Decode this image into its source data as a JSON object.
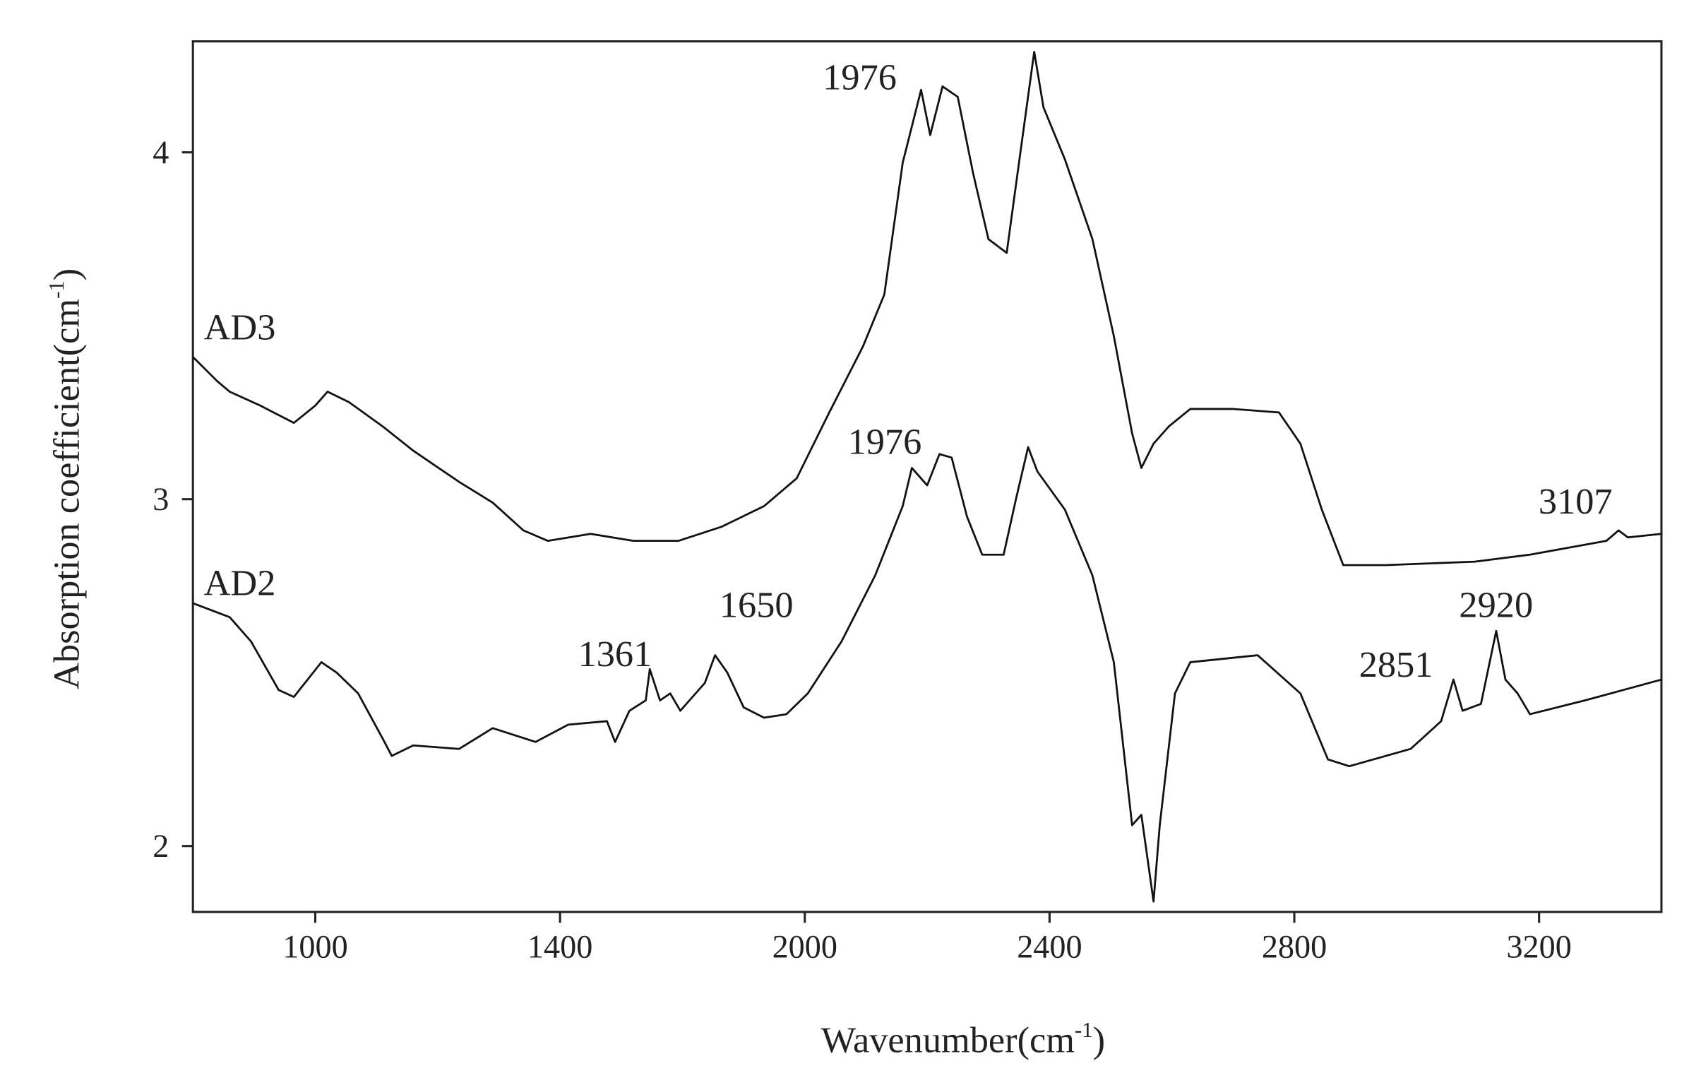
{
  "chart_data": {
    "type": "line",
    "xlabel": "Wavenumber(cm",
    "xlabel_sup": "-1",
    "xlabel_end": ")",
    "ylabel": "Absorption coefficient(cm",
    "ylabel_sup": "-1",
    "ylabel_end": ")",
    "xlim": [
      800,
      3400
    ],
    "xticks": [
      1000,
      1400,
      2000,
      2400,
      2800,
      3200
    ],
    "ylim": [
      1.81,
      4.32
    ],
    "yticks": [
      2,
      3,
      4
    ],
    "annotations": [
      "1976",
      "1976",
      "1361",
      "1650",
      "2851",
      "2920",
      "3107"
    ],
    "series": [
      {
        "name": "AD3",
        "color": "#111111",
        "x": [
          800,
          840,
          860,
          910,
          965,
          1000,
          1020,
          1055,
          1110,
          1160,
          1235,
          1290,
          1340,
          1380,
          1475,
          1580,
          1690,
          1795,
          1900,
          1980,
          2040,
          2095,
          2130,
          2160,
          2190,
          2205,
          2225,
          2250,
          2275,
          2300,
          2330,
          2350,
          2375,
          2390,
          2425,
          2470,
          2505,
          2535,
          2550,
          2570,
          2595,
          2630,
          2700,
          2775,
          2810,
          2845,
          2880,
          2950,
          3095,
          3185,
          3310,
          3330,
          3345,
          3400
        ],
        "values": [
          3.41,
          3.34,
          3.31,
          3.27,
          3.22,
          3.27,
          3.31,
          3.28,
          3.21,
          3.14,
          3.05,
          2.99,
          2.91,
          2.88,
          2.9,
          2.88,
          2.88,
          2.92,
          2.98,
          3.06,
          3.25,
          3.44,
          3.59,
          3.97,
          4.18,
          4.05,
          4.19,
          4.16,
          3.94,
          3.75,
          3.71,
          3.97,
          4.29,
          4.13,
          3.98,
          3.75,
          3.47,
          3.19,
          3.09,
          3.16,
          3.21,
          3.26,
          3.26,
          3.25,
          3.16,
          2.97,
          2.81,
          2.81,
          2.82,
          2.84,
          2.88,
          2.91,
          2.89,
          2.9
        ]
      },
      {
        "name": "AD2",
        "color": "#111111",
        "x": [
          800,
          860,
          895,
          940,
          965,
          1010,
          1035,
          1070,
          1110,
          1125,
          1160,
          1235,
          1290,
          1360,
          1420,
          1515,
          1535,
          1570,
          1610,
          1620,
          1645,
          1670,
          1695,
          1755,
          1780,
          1810,
          1850,
          1900,
          1955,
          2005,
          2060,
          2115,
          2160,
          2175,
          2200,
          2220,
          2240,
          2265,
          2290,
          2325,
          2345,
          2365,
          2380,
          2425,
          2470,
          2505,
          2535,
          2550,
          2570,
          2580,
          2605,
          2630,
          2740,
          2810,
          2855,
          2890,
          2990,
          3040,
          3060,
          3075,
          3105,
          3130,
          3145,
          3165,
          3185,
          3275,
          3400
        ],
        "values": [
          2.7,
          2.66,
          2.59,
          2.45,
          2.43,
          2.53,
          2.5,
          2.44,
          2.31,
          2.26,
          2.29,
          2.28,
          2.34,
          2.3,
          2.35,
          2.36,
          2.3,
          2.39,
          2.42,
          2.51,
          2.42,
          2.44,
          2.39,
          2.47,
          2.55,
          2.5,
          2.4,
          2.37,
          2.38,
          2.44,
          2.59,
          2.78,
          2.98,
          3.09,
          3.04,
          3.13,
          3.12,
          2.95,
          2.84,
          2.84,
          3.0,
          3.15,
          3.08,
          2.97,
          2.78,
          2.53,
          2.06,
          2.09,
          1.84,
          2.06,
          2.44,
          2.53,
          2.55,
          2.44,
          2.25,
          2.23,
          2.28,
          2.36,
          2.48,
          2.39,
          2.41,
          2.62,
          2.48,
          2.44,
          2.38,
          2.42,
          2.48
        ]
      }
    ]
  }
}
